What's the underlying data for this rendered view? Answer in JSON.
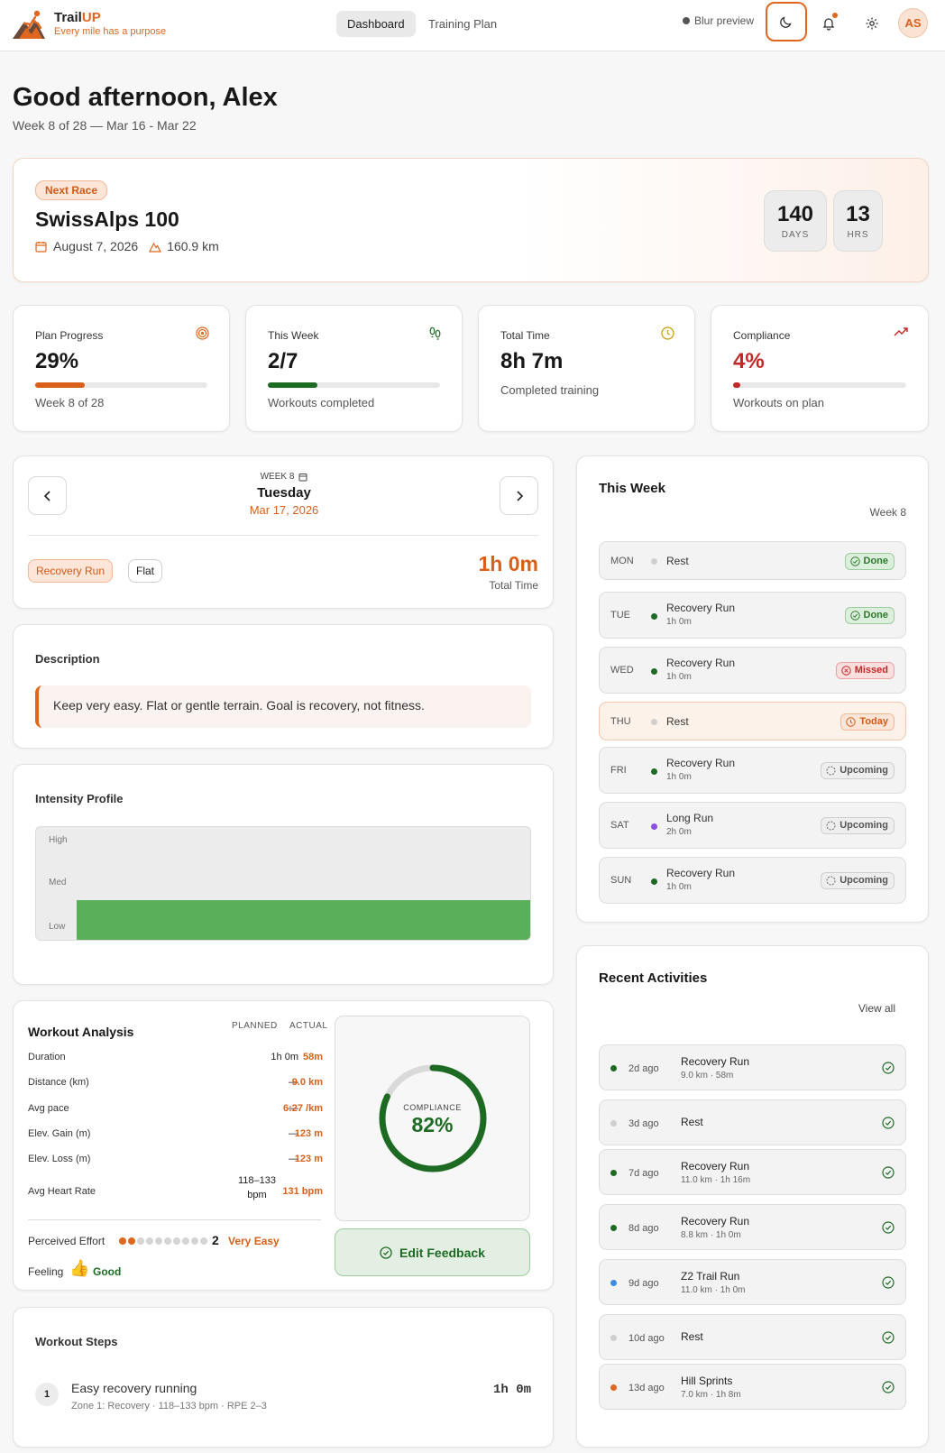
{
  "app": {
    "name_main": "Trail",
    "name_accent": "UP",
    "tagline": "Every mile has a purpose"
  },
  "nav": {
    "tabs": [
      "Dashboard",
      "Training Plan"
    ],
    "blur_label": "Blur preview",
    "avatar": "AS"
  },
  "greeting": {
    "title": "Good afternoon, Alex",
    "week_line": "Week 8 of 28 — Mar 16 - Mar 22"
  },
  "race": {
    "badge": "Next Race",
    "name": "SwissAlps 100",
    "date": "August 7, 2026",
    "distance": "160.9 km",
    "countdown": [
      {
        "value": "140",
        "unit": "DAYS"
      },
      {
        "value": "13",
        "unit": "HRS"
      }
    ]
  },
  "stats": [
    {
      "title": "Plan Progress",
      "value": "29%",
      "sub": "Week 8 of 28",
      "progress": 0.29,
      "color": "#d9601a",
      "icon": "target-icon"
    },
    {
      "title": "This Week",
      "value": "2/7",
      "sub": "Workouts completed",
      "progress": 0.29,
      "color": "#1d6b23",
      "icon": "footprints-icon"
    },
    {
      "title": "Total Time",
      "value": "8h 7m",
      "sub": "Completed training",
      "icon": "clock-icon"
    },
    {
      "title": "Compliance",
      "value": "4%",
      "sub": "Workouts on plan",
      "progress": 0.04,
      "color": "#c42727",
      "icon": "trend-up-icon"
    }
  ],
  "day": {
    "week": "WEEK 8",
    "weekday": "Tuesday",
    "date": "Mar 17, 2026",
    "tags": [
      "Recovery Run",
      "Flat"
    ],
    "total": "1h 0m",
    "total_label": "Total Time"
  },
  "description": {
    "title": "Description",
    "text": "Keep very easy. Flat or gentle terrain. Goal is recovery, not fitness."
  },
  "intensity": {
    "title": "Intensity Profile",
    "levels": [
      "High",
      "Med",
      "Low"
    ],
    "value_level": "Low"
  },
  "analysis": {
    "title": "Workout Analysis",
    "col_planned": "PLANNED",
    "col_actual": "ACTUAL",
    "rows": [
      {
        "label": "Duration",
        "planned": "1h 0m",
        "actual": "58m"
      },
      {
        "label": "Distance (km)",
        "planned": "—",
        "actual": "9.0 km"
      },
      {
        "label": "Avg pace",
        "planned": "—",
        "actual": "6:27 /km"
      },
      {
        "label": "Elev. Gain (m)",
        "planned": "—",
        "actual": "123 m"
      },
      {
        "label": "Elev. Loss (m)",
        "planned": "—",
        "actual": "123 m"
      },
      {
        "label": "Avg Heart Rate",
        "planned": "118–133 bpm",
        "actual": "131 bpm"
      }
    ],
    "effort_label": "Perceived Effort",
    "effort_value": "2",
    "effort_max": 10,
    "effort_text": "Very Easy",
    "feeling_label": "Feeling",
    "feeling_text": "Good",
    "compliance_label": "COMPLIANCE",
    "compliance_value": "82%",
    "compliance_ratio": 0.82,
    "feedback_button": "Edit Feedback"
  },
  "steps": {
    "title": "Workout Steps",
    "items": [
      {
        "num": "1",
        "name": "Easy recovery running",
        "detail": "Zone 1: Recovery · 118–133 bpm · RPE 2–3",
        "duration": "1h 0m"
      }
    ]
  },
  "this_week": {
    "title": "This Week",
    "week": "Week 8",
    "days": [
      {
        "day": "MON",
        "name": "Rest",
        "sub": "",
        "status": "Done",
        "dot": "#cfcfcf"
      },
      {
        "day": "TUE",
        "name": "Recovery Run",
        "sub": "1h 0m",
        "status": "Done",
        "dot": "#1d6b23"
      },
      {
        "day": "WED",
        "name": "Recovery Run",
        "sub": "1h 0m",
        "status": "Missed",
        "dot": "#1d6b23"
      },
      {
        "day": "THU",
        "name": "Rest",
        "sub": "",
        "status": "Today",
        "dot": "#cfcfcf"
      },
      {
        "day": "FRI",
        "name": "Recovery Run",
        "sub": "1h 0m",
        "status": "Upcoming",
        "dot": "#1d6b23"
      },
      {
        "day": "SAT",
        "name": "Long Run",
        "sub": "2h 0m",
        "status": "Upcoming",
        "dot": "#8a4fe8"
      },
      {
        "day": "SUN",
        "name": "Recovery Run",
        "sub": "1h 0m",
        "status": "Upcoming",
        "dot": "#1d6b23"
      }
    ]
  },
  "recent": {
    "title": "Recent Activities",
    "view_all": "View all",
    "items": [
      {
        "ago": "2d ago",
        "name": "Recovery Run",
        "sub": "9.0 km · 58m",
        "dot": "#1d6b23"
      },
      {
        "ago": "3d ago",
        "name": "Rest",
        "sub": "",
        "dot": "#cfcfcf"
      },
      {
        "ago": "7d ago",
        "name": "Recovery Run",
        "sub": "11.0 km · 1h 16m",
        "dot": "#1d6b23"
      },
      {
        "ago": "8d ago",
        "name": "Recovery Run",
        "sub": "8.8 km · 1h 0m",
        "dot": "#1d6b23"
      },
      {
        "ago": "9d ago",
        "name": "Z2 Trail Run",
        "sub": "11.0 km · 1h 0m",
        "dot": "#3b8de0"
      },
      {
        "ago": "10d ago",
        "name": "Rest",
        "sub": "",
        "dot": "#cfcfcf"
      },
      {
        "ago": "13d ago",
        "name": "Hill Sprints",
        "sub": "7.0 km · 1h 8m",
        "dot": "#e0671f"
      }
    ]
  }
}
